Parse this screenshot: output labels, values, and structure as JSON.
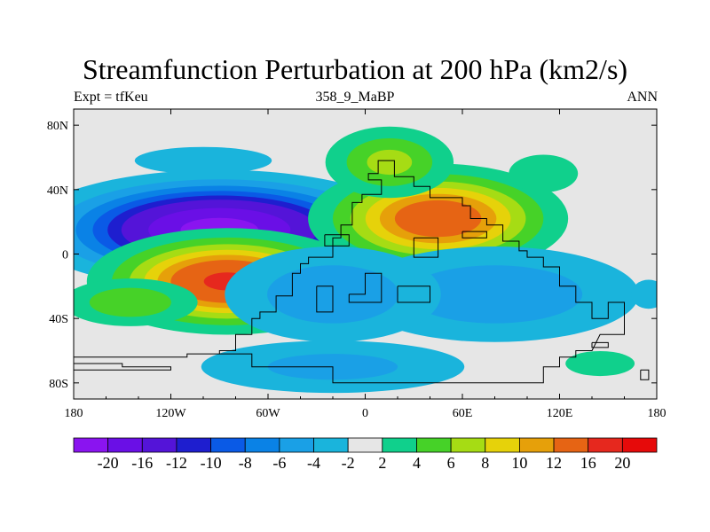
{
  "chart_data": {
    "type": "contour-map",
    "title": "Streamfunction Perturbation at 200 hPa (km2/s)",
    "left_label": "Expt = tfKeu",
    "center_label": "358_9_MaBP",
    "right_label": "ANN",
    "x_ticks": [
      {
        "v": -180,
        "t": "180"
      },
      {
        "v": -120,
        "t": "120W"
      },
      {
        "v": -60,
        "t": "60W"
      },
      {
        "v": 0,
        "t": "0"
      },
      {
        "v": 60,
        "t": "60E"
      },
      {
        "v": 120,
        "t": "120E"
      },
      {
        "v": 180,
        "t": "180"
      }
    ],
    "y_ticks": [
      {
        "v": 80,
        "t": "80N"
      },
      {
        "v": 40,
        "t": "40N"
      },
      {
        "v": 0,
        "t": "0"
      },
      {
        "v": -40,
        "t": "40S"
      },
      {
        "v": -80,
        "t": "80S"
      }
    ],
    "xlim": [
      -180,
      180
    ],
    "ylim": [
      -90,
      90
    ],
    "background_color": "#e6e6e6",
    "colorbar_levels": [
      "-20",
      "-16",
      "-12",
      "-10",
      "-8",
      "-6",
      "-4",
      "-2",
      "2",
      "4",
      "6",
      "8",
      "10",
      "12",
      "16",
      "20"
    ],
    "colorbar_colors": [
      "#8a14f0",
      "#6a0fe6",
      "#5414d8",
      "#1e1ecf",
      "#0a5ae6",
      "#0a82e6",
      "#1aa0e6",
      "#1ab4dc",
      "#e6e6e6",
      "#10d08c",
      "#46d228",
      "#a6dc14",
      "#e6d20a",
      "#e6a00a",
      "#e66414",
      "#e6281e",
      "#e60a0a"
    ],
    "features": [
      {
        "lon": -90,
        "lat": 15,
        "ax": 55,
        "ay": 17,
        "peak": -22
      },
      {
        "lon": -85,
        "lat": -17,
        "ax": 42,
        "ay": 16,
        "peak": 17
      },
      {
        "lon": -145,
        "lat": -30,
        "ax": 28,
        "ay": 10,
        "peak": 6
      },
      {
        "lon": 45,
        "lat": 22,
        "ax": 40,
        "ay": 17,
        "peak": 15
      },
      {
        "lon": 15,
        "lat": 57,
        "ax": 25,
        "ay": 14,
        "peak": 7
      },
      {
        "lon": 80,
        "lat": -25,
        "ax": 60,
        "ay": 20,
        "peak": -6
      },
      {
        "lon": -20,
        "lat": -25,
        "ax": 45,
        "ay": 20,
        "peak": -6
      },
      {
        "lon": -20,
        "lat": -70,
        "ax": 60,
        "ay": 12,
        "peak": -5
      },
      {
        "lon": -100,
        "lat": 58,
        "ax": 40,
        "ay": 8,
        "peak": -3.5
      },
      {
        "lon": 145,
        "lat": -68,
        "ax": 22,
        "ay": 8,
        "peak": 3.2
      },
      {
        "lon": 110,
        "lat": 50,
        "ax": 22,
        "ay": 12,
        "peak": 3.2
      },
      {
        "lon": 175,
        "lat": -25,
        "ax": 12,
        "ay": 10,
        "peak": -3
      }
    ]
  }
}
